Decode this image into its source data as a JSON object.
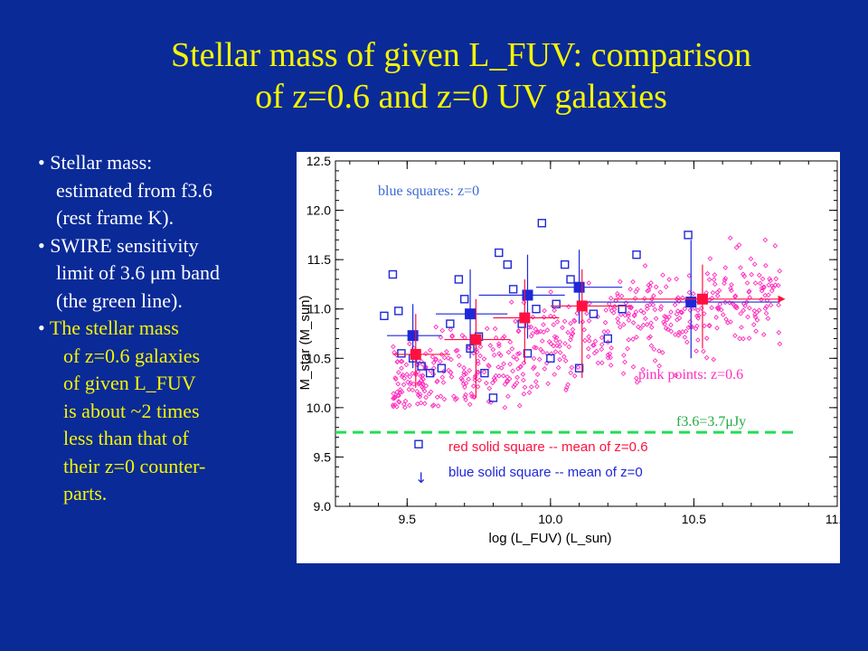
{
  "slide": {
    "title_line1": "Stellar mass of given L_FUV: comparison",
    "title_line2": "of z=0.6 and z=0 UV galaxies"
  },
  "bullets": {
    "b1": [
      "• Stellar mass:",
      "estimated from f3.6",
      "(rest frame K)."
    ],
    "b2": [
      "• SWIRE sensitivity",
      "limit of 3.6 μm band",
      "(the green line)."
    ],
    "b3": [
      "• ",
      "The stellar mass",
      "of z=0.6 galaxies",
      "of given L_FUV",
      "is about ~2 times",
      "less than that of",
      "their  z=0  counter-",
      "parts."
    ]
  },
  "colors": {
    "background": "#0a2a98",
    "title": "#f5f500",
    "pink": "#ff2dbe",
    "red": "#ff1040",
    "blue": "#1e28d8",
    "green": "#22dd55",
    "label_blue": "#3a6ad6"
  },
  "labels": {
    "blue_squares": "blue squares: z=0",
    "pink_points": "pink points: z=0.6",
    "green_line_prefix": "f3.6=3.7",
    "green_line_mu": "μ",
    "green_line_suffix": "Jy",
    "red_legend": "red solid square   -- mean of z=0.6",
    "blue_legend": "blue solid square  -- mean of z=0",
    "arrow": "↓"
  },
  "chart_data": {
    "type": "scatter",
    "xlabel": "log (L_FUV) (L_sun)",
    "ylabel": "M_star (M_sun)",
    "xlim": [
      9.25,
      11.0
    ],
    "ylim": [
      9.0,
      12.5
    ],
    "xticks": [
      "9.5",
      "10.0",
      "10.5",
      "11.0"
    ],
    "yticks": [
      "9.0",
      "9.5",
      "10.0",
      "10.5",
      "11.0",
      "11.5",
      "12.0",
      "12.5"
    ],
    "green_line_y": 9.75,
    "series": [
      {
        "name": "blue squares: z=0",
        "marker": "open-square",
        "points": [
          [
            9.45,
            11.35
          ],
          [
            9.42,
            10.93
          ],
          [
            9.47,
            10.98
          ],
          [
            9.48,
            10.55
          ],
          [
            9.52,
            10.5
          ],
          [
            9.55,
            10.42
          ],
          [
            9.58,
            10.35
          ],
          [
            9.62,
            10.4
          ],
          [
            9.65,
            10.85
          ],
          [
            9.68,
            11.3
          ],
          [
            9.7,
            11.1
          ],
          [
            9.72,
            10.6
          ],
          [
            9.75,
            10.72
          ],
          [
            9.77,
            10.35
          ],
          [
            9.8,
            10.1
          ],
          [
            9.82,
            11.57
          ],
          [
            9.85,
            11.45
          ],
          [
            9.87,
            11.2
          ],
          [
            9.9,
            10.85
          ],
          [
            9.92,
            10.55
          ],
          [
            9.95,
            11.0
          ],
          [
            9.97,
            11.87
          ],
          [
            10.0,
            10.5
          ],
          [
            10.02,
            11.05
          ],
          [
            10.05,
            11.45
          ],
          [
            10.07,
            11.3
          ],
          [
            10.1,
            10.4
          ],
          [
            10.15,
            10.95
          ],
          [
            10.2,
            10.7
          ],
          [
            10.25,
            11.0
          ],
          [
            10.3,
            11.55
          ],
          [
            10.48,
            11.75
          ],
          [
            9.54,
            9.63
          ]
        ]
      },
      {
        "name": "pink points: z=0.6",
        "marker": "small-open-diamond",
        "points": []
      },
      {
        "name": "red solid square -- mean of z=0.6",
        "marker": "filled-square",
        "points": [
          {
            "x": 9.53,
            "y": 10.54,
            "xerr": [
              9.45,
              9.65
            ],
            "yerr": [
              10.2,
              10.95
            ]
          },
          {
            "x": 9.74,
            "y": 10.69,
            "xerr": [
              9.63,
              9.86
            ],
            "yerr": [
              10.1,
              11.1
            ]
          },
          {
            "x": 9.91,
            "y": 10.91,
            "xerr": [
              9.8,
              10.03
            ],
            "yerr": [
              10.45,
              11.3
            ]
          },
          {
            "x": 10.11,
            "y": 11.03,
            "xerr": [
              10.0,
              10.28
            ],
            "yerr": [
              10.3,
              11.4
            ]
          },
          {
            "x": 10.53,
            "y": 11.1,
            "xerr": [
              10.22,
              10.8
            ],
            "yerr": [
              10.6,
              11.45
            ]
          }
        ]
      },
      {
        "name": "blue solid square -- mean of z=0",
        "marker": "filled-square",
        "points": [
          {
            "x": 9.52,
            "y": 10.73,
            "xerr": [
              9.43,
              9.62
            ],
            "yerr": [
              10.4,
              11.05
            ]
          },
          {
            "x": 9.72,
            "y": 10.95,
            "xerr": [
              9.6,
              9.85
            ],
            "yerr": [
              10.5,
              11.4
            ]
          },
          {
            "x": 9.92,
            "y": 11.14,
            "xerr": [
              9.75,
              10.05
            ],
            "yerr": [
              10.7,
              11.55
            ]
          },
          {
            "x": 10.1,
            "y": 11.22,
            "xerr": [
              9.95,
              10.25
            ],
            "yerr": [
              10.85,
              11.6
            ]
          },
          {
            "x": 10.49,
            "y": 11.07,
            "xerr": [
              10.1,
              10.8
            ],
            "yerr": [
              10.5,
              11.7
            ]
          }
        ]
      }
    ]
  }
}
